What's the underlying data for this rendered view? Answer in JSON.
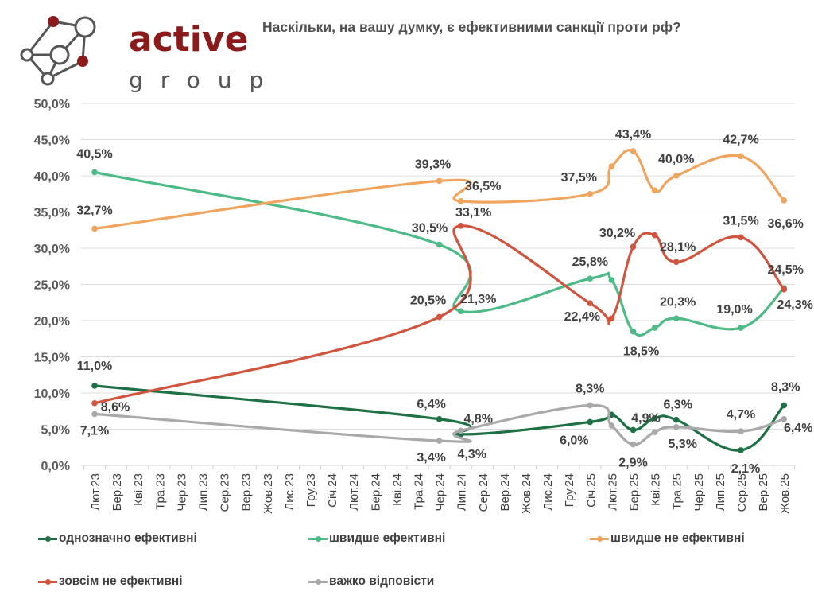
{
  "brand": {
    "name": "active",
    "sub": "group",
    "colors": {
      "primary": "#8b1a1a",
      "secondary": "#555555"
    }
  },
  "title": "Наскільки, на вашу думку, є ефективними санкції проти рф?",
  "chart_data": {
    "type": "line",
    "title": "Наскільки, на вашу думку, є ефективними санкції проти рф?",
    "xlabel": "",
    "ylabel": "",
    "ylim": [
      0,
      50
    ],
    "yticks": [
      "0,0%",
      "5,0%",
      "10,0%",
      "15,0%",
      "20,0%",
      "25,0%",
      "30,0%",
      "35,0%",
      "40,0%",
      "45,0%",
      "50,0%"
    ],
    "grid": true,
    "legend_position": "bottom",
    "categories": [
      "Лют.23",
      "Бер.23",
      "Кві.23",
      "Тра.23",
      "Чер.23",
      "Лип.23",
      "Сер.23",
      "Вер.23",
      "Жов.23",
      "Лис.23",
      "Гру.23",
      "Січ.24",
      "Лют.24",
      "Бер.24",
      "Кві.24",
      "Тра.24",
      "Чер.24",
      "Лип.24",
      "Сер.24",
      "Вер.24",
      "Жов.24",
      "Лис.24",
      "Гру.24",
      "Січ.25",
      "Лют.25",
      "Бер.25",
      "Кві.25",
      "Тра.25",
      "Чер.25",
      "Лип.25",
      "Сер.25",
      "Вер.25",
      "Жов.25"
    ],
    "series": [
      {
        "name": "однозначно ефективні",
        "color": "#1e7145",
        "points": [
          [
            0,
            11.0
          ],
          [
            16,
            6.4
          ],
          [
            17,
            4.3
          ],
          [
            23,
            6.0
          ],
          [
            24,
            7.0
          ],
          [
            25,
            4.9
          ],
          [
            26,
            6.5
          ],
          [
            27,
            6.3
          ],
          [
            30,
            2.1
          ],
          [
            32,
            8.3
          ]
        ],
        "labels": [
          [
            0,
            "11,0%"
          ],
          [
            16,
            "6,4%"
          ],
          [
            17,
            "4,3%"
          ],
          [
            23,
            "6,0%"
          ],
          [
            25,
            "4,9%"
          ],
          [
            27,
            "6,3%"
          ],
          [
            30,
            "2,1%"
          ],
          [
            32,
            "8,3%"
          ]
        ]
      },
      {
        "name": "швидше ефективні",
        "color": "#4cbb86",
        "points": [
          [
            0,
            40.5
          ],
          [
            16,
            30.5
          ],
          [
            17,
            21.3
          ],
          [
            23,
            25.8
          ],
          [
            24,
            25.6
          ],
          [
            25,
            18.5
          ],
          [
            26,
            19.0
          ],
          [
            27,
            20.3
          ],
          [
            30,
            19.0
          ],
          [
            32,
            24.5
          ]
        ],
        "labels": [
          [
            0,
            "40,5%"
          ],
          [
            16,
            "30,5%"
          ],
          [
            17,
            "21,3%"
          ],
          [
            23,
            "25,8%"
          ],
          [
            25,
            "18,5%"
          ],
          [
            27,
            "20,3%"
          ],
          [
            30,
            "19,0%"
          ],
          [
            32,
            "24,5%"
          ]
        ]
      },
      {
        "name": "швидше не ефективні",
        "color": "#f0a55e",
        "points": [
          [
            0,
            32.7
          ],
          [
            16,
            39.3
          ],
          [
            17,
            36.5
          ],
          [
            23,
            37.5
          ],
          [
            24,
            41.3
          ],
          [
            25,
            43.4
          ],
          [
            26,
            38.0
          ],
          [
            27,
            40.0
          ],
          [
            30,
            42.7
          ],
          [
            32,
            36.6
          ]
        ],
        "labels": [
          [
            0,
            "32,7%"
          ],
          [
            16,
            "39,3%"
          ],
          [
            17,
            "36,5%"
          ],
          [
            23,
            "37,5%"
          ],
          [
            25,
            "43,4%"
          ],
          [
            27,
            "40,0%"
          ],
          [
            30,
            "42,7%"
          ],
          [
            32,
            "36,6%"
          ]
        ]
      },
      {
        "name": "зовсім не ефективні",
        "color": "#d0553f",
        "points": [
          [
            0,
            8.6
          ],
          [
            16,
            20.5
          ],
          [
            17,
            33.1
          ],
          [
            23,
            22.4
          ],
          [
            24,
            20.3
          ],
          [
            25,
            30.2
          ],
          [
            26,
            31.8
          ],
          [
            27,
            28.1
          ],
          [
            30,
            31.5
          ],
          [
            32,
            24.3
          ]
        ],
        "labels": [
          [
            0,
            "8,6%"
          ],
          [
            16,
            "20,5%"
          ],
          [
            17,
            "33,1%"
          ],
          [
            23,
            "22,4%"
          ],
          [
            25,
            "30,2%"
          ],
          [
            27,
            "28,1%"
          ],
          [
            30,
            "31,5%"
          ],
          [
            32,
            "24,3%"
          ]
        ]
      },
      {
        "name": "важко відповісти",
        "color": "#a9a9a9",
        "points": [
          [
            0,
            7.1
          ],
          [
            16,
            3.4
          ],
          [
            17,
            4.8
          ],
          [
            23,
            8.3
          ],
          [
            24,
            5.5
          ],
          [
            25,
            2.9
          ],
          [
            26,
            4.6
          ],
          [
            27,
            5.3
          ],
          [
            30,
            4.7
          ],
          [
            32,
            6.4
          ]
        ],
        "labels": [
          [
            0,
            "7,1%"
          ],
          [
            16,
            "3,4%"
          ],
          [
            17,
            "4,8%"
          ],
          [
            23,
            "8,3%"
          ],
          [
            25,
            "2,9%"
          ],
          [
            27,
            "5,3%"
          ],
          [
            30,
            "4,7%"
          ],
          [
            32,
            "6,4%"
          ]
        ]
      }
    ]
  },
  "legend": [
    {
      "label": "однозначно ефективні",
      "color": "#1e7145"
    },
    {
      "label": "швидше ефективні",
      "color": "#4cbb86"
    },
    {
      "label": "швидше не ефективні",
      "color": "#f0a55e"
    },
    {
      "label": "зовсім не ефективні",
      "color": "#d0553f"
    },
    {
      "label": "важко відповісти",
      "color": "#a9a9a9"
    }
  ]
}
